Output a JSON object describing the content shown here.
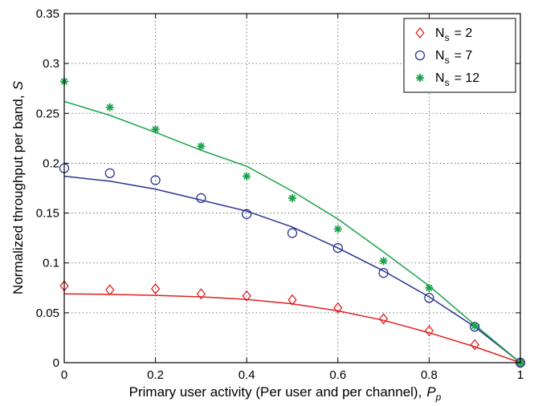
{
  "chart_data": {
    "type": "line",
    "title": "",
    "xlabel": "Primary user activity (Per user and per channel),",
    "xlabel_symbol": "P",
    "xlabel_subscript": "p",
    "ylabel": "Normalized throughput per band,",
    "ylabel_symbol": "S",
    "xlim": [
      0,
      1
    ],
    "ylim": [
      0,
      0.35
    ],
    "xticks": [
      0,
      0.2,
      0.4,
      0.6,
      0.8,
      1
    ],
    "xtick_labels": [
      "0",
      "0.2",
      "0.4",
      "0.6",
      "0.8",
      "1"
    ],
    "yticks": [
      0,
      0.05,
      0.1,
      0.15,
      0.2,
      0.25,
      0.3,
      0.35
    ],
    "ytick_labels": [
      "0",
      "0.05",
      "0.1",
      "0.15",
      "0.2",
      "0.25",
      "0.3",
      "0.35"
    ],
    "grid": true,
    "grid_style": "dotted",
    "legend_position": "top-right",
    "series": [
      {
        "name": "N_s = 2",
        "legend_base": "N",
        "legend_sub": "s",
        "legend_value": "= 2",
        "color": "#e02020",
        "marker": "diamond",
        "points_x": [
          0,
          0.1,
          0.2,
          0.3,
          0.4,
          0.5,
          0.6,
          0.7,
          0.8,
          0.9,
          1.0
        ],
        "points_y": [
          0.077,
          0.073,
          0.074,
          0.069,
          0.067,
          0.063,
          0.055,
          0.044,
          0.032,
          0.018,
          0.0
        ],
        "curve_x": [
          0,
          0.1,
          0.2,
          0.3,
          0.4,
          0.5,
          0.6,
          0.7,
          0.8,
          0.9,
          1.0
        ],
        "curve_y": [
          0.069,
          0.0685,
          0.0675,
          0.066,
          0.0635,
          0.059,
          0.052,
          0.0425,
          0.03,
          0.016,
          0.0
        ]
      },
      {
        "name": "N_s = 7",
        "legend_base": "N",
        "legend_sub": "s",
        "legend_value": "= 7",
        "color": "#2b3590",
        "marker": "circle",
        "points_x": [
          0,
          0.1,
          0.2,
          0.3,
          0.4,
          0.5,
          0.6,
          0.7,
          0.8,
          0.9,
          1.0
        ],
        "points_y": [
          0.195,
          0.19,
          0.183,
          0.165,
          0.149,
          0.13,
          0.115,
          0.09,
          0.065,
          0.036,
          0.0
        ],
        "curve_x": [
          0,
          0.1,
          0.2,
          0.3,
          0.4,
          0.5,
          0.6,
          0.7,
          0.8,
          0.9,
          1.0
        ],
        "curve_y": [
          0.187,
          0.182,
          0.174,
          0.163,
          0.152,
          0.136,
          0.115,
          0.092,
          0.066,
          0.036,
          0.0
        ]
      },
      {
        "name": "N_s = 12",
        "legend_base": "N",
        "legend_sub": "s",
        "legend_value": "= 12",
        "color": "#1aa34a",
        "marker": "star",
        "points_x": [
          0,
          0.1,
          0.2,
          0.3,
          0.4,
          0.5,
          0.6,
          0.7,
          0.8,
          0.9,
          1.0
        ],
        "points_y": [
          0.282,
          0.256,
          0.234,
          0.217,
          0.187,
          0.165,
          0.134,
          0.102,
          0.075,
          0.037,
          0.0
        ],
        "curve_x": [
          0,
          0.1,
          0.2,
          0.3,
          0.4,
          0.5,
          0.6,
          0.7,
          0.8,
          0.9,
          1.0
        ],
        "curve_y": [
          0.262,
          0.248,
          0.231,
          0.213,
          0.197,
          0.172,
          0.144,
          0.111,
          0.077,
          0.038,
          0.0
        ]
      }
    ]
  }
}
